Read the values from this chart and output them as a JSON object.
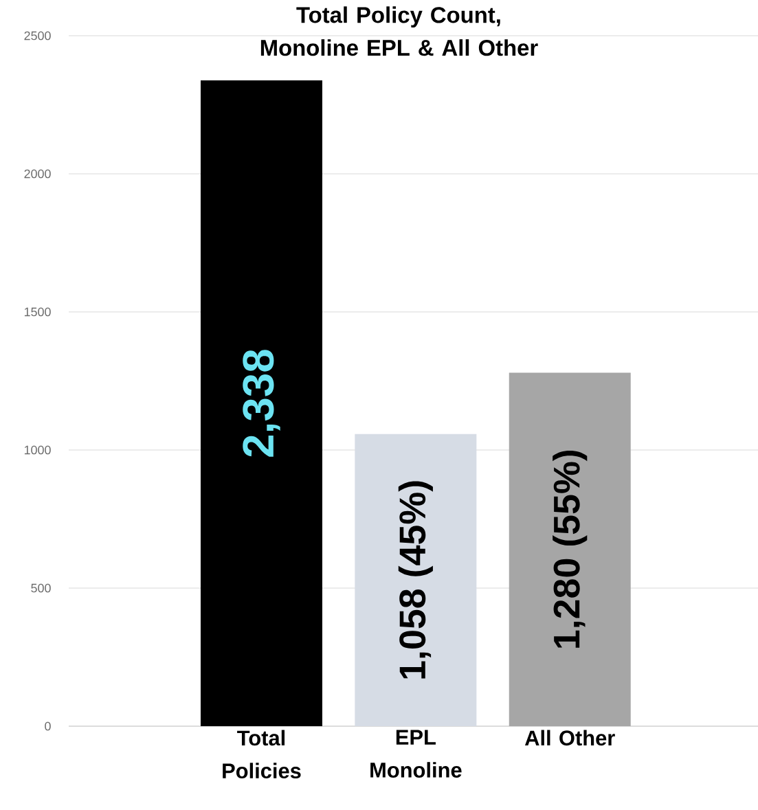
{
  "chart_data": {
    "type": "bar",
    "title": "Total Policy Count, Monoline EPL & All Other",
    "categories": [
      "Total Policies",
      "EPL Monoline",
      "All Other"
    ],
    "values": [
      2338,
      1058,
      1280
    ],
    "colors": [
      "#000000",
      "#d6dce5",
      "#a6a6a6"
    ],
    "value_labels": [
      "2,338",
      "1,058 (45%)",
      "1,280 (55%)"
    ],
    "ylim": [
      0,
      2500
    ],
    "yticks": [
      0,
      500,
      1000,
      1500,
      2000,
      2500
    ],
    "grid": "y"
  }
}
